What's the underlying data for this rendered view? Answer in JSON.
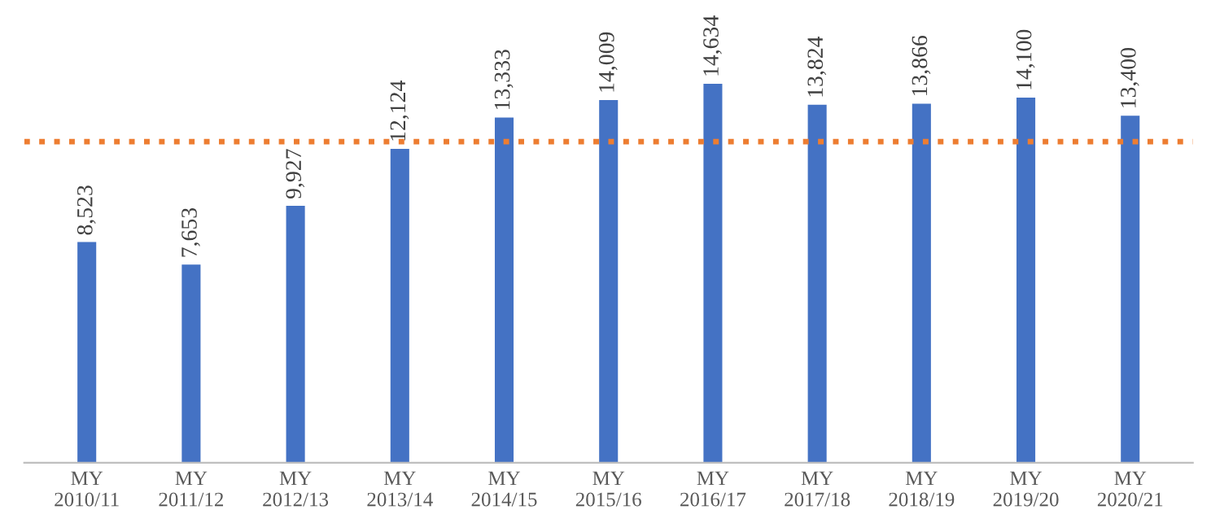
{
  "chart_data": {
    "type": "bar",
    "categories": [
      "MY\n2010/11",
      "MY\n2011/12",
      "MY\n2012/13",
      "MY\n2013/14",
      "MY\n2014/15",
      "MY\n2015/16",
      "MY\n2016/17",
      "MY\n2017/18",
      "MY\n2018/19",
      "MY\n2019/20",
      "MY\n2020/21"
    ],
    "values": [
      8523,
      7653,
      9927,
      12124,
      13333,
      14009,
      14634,
      13824,
      13866,
      14100,
      13400
    ],
    "value_labels": [
      "8,523",
      "7,653",
      "9,927",
      "12,124",
      "13,333",
      "14,009",
      "14,634",
      "13,824",
      "13,866",
      "14,100",
      "13,400"
    ],
    "color": "#4472c4",
    "ref_lines": [
      {
        "axis": "y",
        "value": 12400,
        "color": "#ed7d31",
        "line_style": "dotted"
      }
    ]
  }
}
